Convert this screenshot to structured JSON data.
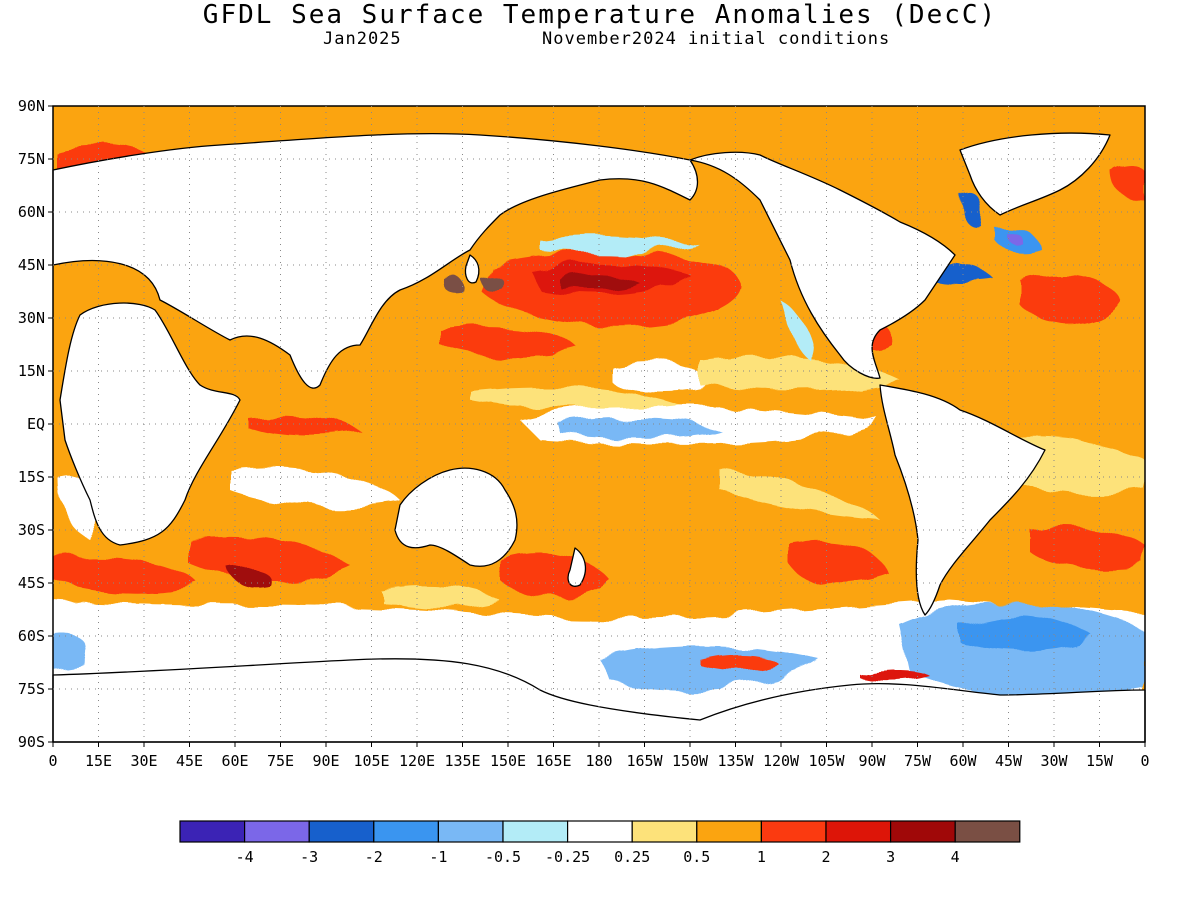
{
  "header": {
    "title": "GFDL Sea Surface Temperature Anomalies (DecC)",
    "valid_month": "Jan2025",
    "init_label": "November2024 initial conditions"
  },
  "map": {
    "lat_labels": [
      "90N",
      "75N",
      "60N",
      "45N",
      "30N",
      "15N",
      "EQ",
      "15S",
      "30S",
      "45S",
      "60S",
      "75S",
      "90S"
    ],
    "lon_labels": [
      "0",
      "15E",
      "30E",
      "45E",
      "60E",
      "75E",
      "90E",
      "105E",
      "120E",
      "135E",
      "150E",
      "165E",
      "180",
      "165W",
      "150W",
      "135W",
      "120W",
      "105W",
      "90W",
      "75W",
      "60W",
      "45W",
      "30W",
      "15W",
      "0"
    ]
  },
  "colorbar": {
    "colors": [
      "#3b23b5",
      "#7b67e8",
      "#1760cc",
      "#3a95f0",
      "#79b8f5",
      "#b3ecf7",
      "#ffffff",
      "#fde27a",
      "#fba410",
      "#fb3a10",
      "#dd1508",
      "#a00808",
      "#7a4f44"
    ],
    "labels": [
      "-4",
      "-3",
      "-2",
      "-1",
      "-0.5",
      "-0.25",
      "0.25",
      "0.5",
      "1",
      "2",
      "3",
      "4"
    ]
  }
}
